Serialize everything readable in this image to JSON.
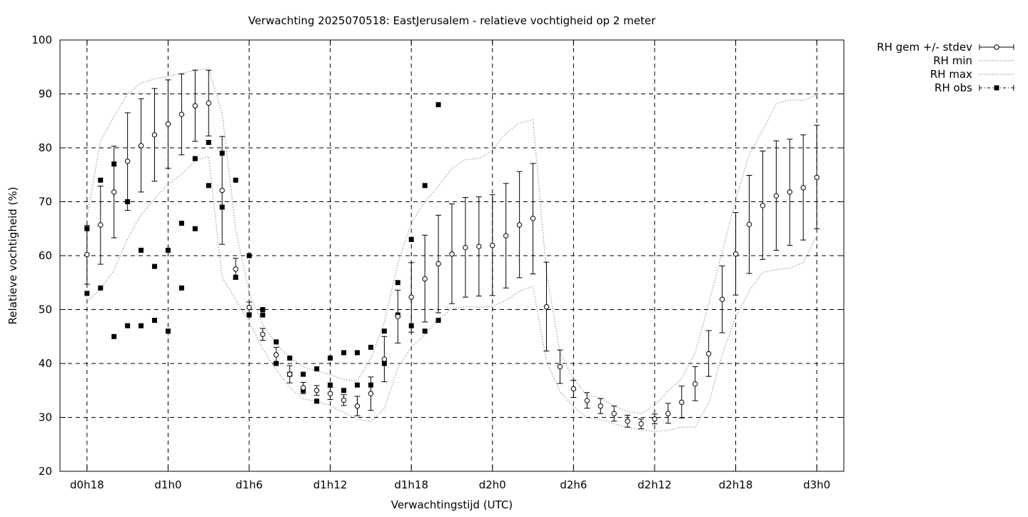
{
  "chart_data": {
    "type": "line",
    "title": "Verwachting 2025070518: EastJerusalem - relatieve vochtigheid op 2 meter",
    "xlabel": "Verwachtingstijd (UTC)",
    "ylabel": "Relatieve vochtigheid (%)",
    "x_range_hours": [
      -2,
      56
    ],
    "ylim": [
      20,
      100
    ],
    "x_ticks": [
      {
        "hour": 0,
        "label": "d0h18"
      },
      {
        "hour": 6,
        "label": "d1h0"
      },
      {
        "hour": 12,
        "label": "d1h6"
      },
      {
        "hour": 18,
        "label": "d1h12"
      },
      {
        "hour": 24,
        "label": "d1h18"
      },
      {
        "hour": 30,
        "label": "d2h0"
      },
      {
        "hour": 36,
        "label": "d2h6"
      },
      {
        "hour": 42,
        "label": "d2h12"
      },
      {
        "hour": 48,
        "label": "d2h18"
      },
      {
        "hour": 54,
        "label": "d3h0"
      }
    ],
    "y_ticks": [
      20,
      30,
      40,
      50,
      60,
      70,
      80,
      90,
      100
    ],
    "grid": true,
    "legend_position": "top-right outside",
    "legend": [
      "RH gem +/- stdev",
      "RH min",
      "RH max",
      "RH obs"
    ],
    "series": [
      {
        "name": "RH gem +/- stdev",
        "style": "errorbar-open-circle",
        "x": [
          0,
          1,
          2,
          3,
          4,
          5,
          6,
          7,
          8,
          9,
          10,
          11,
          12,
          13,
          14,
          15,
          16,
          17,
          18,
          19,
          20,
          21,
          22,
          23,
          24,
          25,
          26,
          27,
          28,
          29,
          30,
          31,
          32,
          33,
          34,
          35,
          36,
          37,
          38,
          39,
          40,
          41,
          42,
          43,
          44,
          45,
          46,
          47,
          48,
          49,
          50,
          51,
          52,
          53,
          54
        ],
        "mean": [
          60.2,
          65.7,
          71.8,
          77.5,
          80.4,
          82.4,
          84.4,
          86.2,
          87.8,
          88.3,
          72.1,
          57.5,
          50.4,
          45.4,
          41.6,
          38.0,
          35.5,
          35.0,
          34.4,
          33.2,
          32.1,
          34.4,
          40.8,
          48.7,
          52.3,
          55.7,
          58.5,
          60.3,
          61.5,
          61.7,
          61.9,
          63.7,
          65.7,
          66.9,
          50.5,
          39.4,
          35.3,
          33.1,
          32.1,
          30.7,
          29.3,
          28.8,
          29.7,
          30.7,
          32.8,
          36.2,
          41.8,
          51.9,
          60.3,
          65.8,
          69.3,
          71.1,
          71.8,
          72.6,
          74.5
        ],
        "low": [
          54.7,
          58.4,
          63.3,
          68.4,
          71.8,
          73.8,
          76.2,
          78.7,
          81.2,
          82.2,
          62.1,
          55.6,
          49.4,
          44.3,
          40.2,
          36.4,
          34.4,
          34.1,
          33.3,
          32.2,
          30.3,
          31.3,
          36.6,
          43.8,
          45.8,
          47.7,
          49.4,
          51.1,
          52.3,
          52.5,
          52.6,
          54.0,
          55.9,
          56.6,
          42.3,
          36.3,
          33.7,
          31.7,
          30.7,
          29.3,
          28.2,
          27.9,
          28.8,
          28.9,
          29.9,
          33.1,
          37.6,
          45.7,
          52.7,
          56.7,
          59.3,
          61.0,
          61.9,
          62.9,
          65.0
        ],
        "high": [
          65.6,
          72.9,
          80.3,
          86.5,
          89.1,
          91.0,
          92.6,
          93.7,
          94.4,
          94.4,
          82.1,
          59.5,
          51.4,
          46.5,
          43.0,
          39.6,
          36.5,
          35.9,
          35.6,
          34.2,
          33.9,
          37.5,
          45.0,
          53.6,
          58.7,
          63.8,
          67.5,
          69.6,
          70.8,
          70.9,
          71.3,
          73.4,
          75.6,
          77.1,
          58.8,
          42.5,
          36.9,
          34.6,
          33.5,
          32.1,
          30.4,
          29.7,
          30.6,
          32.6,
          35.8,
          39.4,
          46.1,
          58.1,
          68.0,
          74.9,
          79.4,
          81.3,
          81.6,
          82.4,
          84.2
        ]
      },
      {
        "name": "RH min",
        "style": "dotted",
        "x": [
          0,
          1,
          2,
          3,
          4,
          5,
          6,
          7,
          8,
          9,
          10,
          11,
          12,
          13,
          14,
          15,
          16,
          17,
          18,
          19,
          20,
          21,
          22,
          23,
          24,
          25,
          26,
          27,
          28,
          29,
          30,
          31,
          32,
          33,
          34,
          35,
          36,
          37,
          38,
          39,
          40,
          41,
          42,
          43,
          44,
          45,
          46,
          47,
          48,
          49,
          50,
          51,
          52,
          53,
          54
        ],
        "values": [
          51.5,
          53.8,
          57.3,
          63.1,
          67.6,
          70.5,
          73.3,
          75.1,
          77.6,
          78.4,
          56.0,
          51.8,
          47.8,
          42.8,
          38.8,
          35.6,
          33.4,
          33.0,
          32.2,
          30.9,
          29.7,
          29.2,
          31.6,
          39.2,
          43.1,
          45.3,
          48.3,
          50.1,
          50.6,
          50.4,
          50.6,
          51.7,
          53.4,
          54.3,
          40.4,
          34.8,
          32.0,
          29.9,
          29.6,
          28.8,
          28.1,
          27.7,
          27.4,
          27.6,
          28.2,
          28.2,
          32.6,
          41.7,
          48.6,
          53.5,
          56.9,
          57.4,
          57.7,
          58.7,
          63.7
        ]
      },
      {
        "name": "RH max",
        "style": "dotted",
        "x": [
          0,
          1,
          2,
          3,
          4,
          5,
          6,
          7,
          8,
          9,
          10,
          11,
          12,
          13,
          14,
          15,
          16,
          17,
          18,
          19,
          20,
          21,
          22,
          23,
          24,
          25,
          26,
          27,
          28,
          29,
          30,
          31,
          32,
          33,
          34,
          35,
          36,
          37,
          38,
          39,
          40,
          41,
          42,
          43,
          44,
          45,
          46,
          47,
          48,
          49,
          50,
          51,
          52,
          53,
          54
        ],
        "values": [
          67.0,
          81.3,
          85.8,
          90.0,
          92.0,
          92.8,
          93.3,
          93.8,
          94.4,
          94.7,
          86.4,
          64.9,
          53.1,
          47.2,
          43.6,
          41.2,
          39.4,
          38.6,
          37.9,
          37.0,
          36.8,
          40.9,
          47.6,
          58.6,
          66.1,
          70.0,
          72.9,
          76.2,
          77.8,
          78.0,
          79.6,
          82.7,
          84.6,
          85.2,
          56.9,
          42.1,
          37.1,
          34.1,
          33.6,
          32.1,
          31.1,
          30.7,
          32.2,
          34.9,
          37.2,
          42.0,
          51.0,
          60.7,
          70.4,
          78.8,
          83.2,
          88.2,
          88.9,
          88.8,
          89.8
        ]
      },
      {
        "name": "RH obs",
        "style": "filled-square",
        "x": [
          0,
          0,
          1,
          1,
          2,
          2,
          3,
          3,
          4,
          4,
          5,
          5,
          6,
          6,
          7,
          7,
          8,
          8,
          9,
          9,
          10,
          10,
          11,
          11,
          12,
          12,
          13,
          13,
          14,
          14,
          15,
          15,
          16,
          16,
          17,
          17,
          18,
          18,
          19,
          19,
          20,
          20,
          21,
          21,
          22,
          22,
          23,
          23,
          24,
          24,
          25,
          25,
          26,
          26
        ],
        "values": [
          65,
          53,
          74,
          54,
          77,
          45,
          70,
          47,
          61,
          47,
          58,
          48,
          61,
          46,
          66,
          54,
          78,
          65,
          81,
          73,
          79,
          69,
          74,
          56,
          60,
          49,
          50,
          49,
          44,
          40,
          41,
          38,
          38,
          35,
          39,
          33,
          41,
          36,
          42,
          35,
          42,
          36,
          43,
          36,
          46,
          40,
          55,
          49,
          63,
          47,
          73,
          46,
          88,
          48
        ]
      }
    ]
  }
}
